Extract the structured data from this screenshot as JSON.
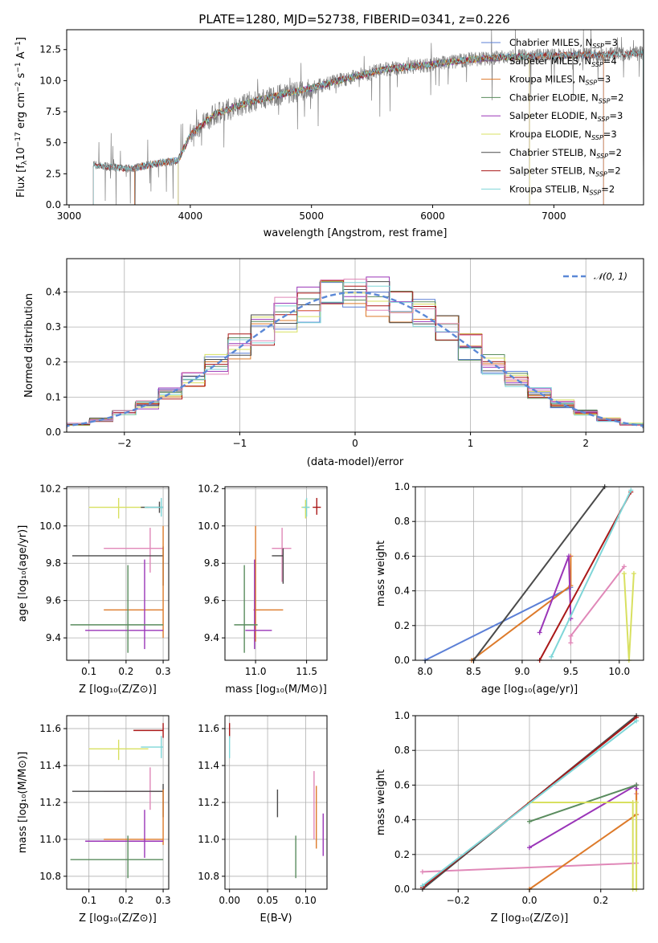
{
  "colors": {
    "Chabrier MILES": "#5b7fd6",
    "Salpeter MILES": "#7a5a80",
    "Kroupa MILES": "#dd7a2a",
    "Chabrier ELODIE": "#5a8c5e",
    "Salpeter ELODIE": "#9a35b8",
    "Kroupa ELODIE": "#d8e060",
    "Chabrier STELIB": "#4a4a4a",
    "Salpeter STELIB": "#aa1818",
    "Kroupa STELIB": "#7fd6d8",
    "pink": "#e088b8",
    "spectrum": "#7f7f7f"
  },
  "chart_data": [
    {
      "id": "spectrum",
      "type": "line",
      "title": "PLATE=1280, MJD=52738, FIBERID=0341, z=0.226",
      "xlabel": "wavelength [Angstrom, rest frame]",
      "ylabel": "Flux [fλ10⁻¹⁷ erg cm⁻² s⁻¹ A⁻¹]",
      "xlim": [
        2980,
        7740
      ],
      "ylim": [
        0,
        14.1
      ],
      "xticks": [
        "3000",
        "4000",
        "5000",
        "6000",
        "7000"
      ],
      "yticks": [
        "0.0",
        "2.5",
        "5.0",
        "7.5",
        "10.0",
        "12.5"
      ],
      "legend_position": "top-right",
      "legend": [
        {
          "name": "Chabrier MILES",
          "label": "Chabrier MILES, N",
          "sub": "SSP",
          "tail": "=3"
        },
        {
          "name": "Salpeter MILES",
          "label": "Salpeter MILES, N",
          "sub": "SSP",
          "tail": "=4"
        },
        {
          "name": "Kroupa MILES",
          "label": "Kroupa MILES, N",
          "sub": "SSP",
          "tail": "=3"
        },
        {
          "name": "Chabrier ELODIE",
          "label": "Chabrier ELODIE, N",
          "sub": "SSP",
          "tail": "=2"
        },
        {
          "name": "Salpeter ELODIE",
          "label": "Salpeter ELODIE, N",
          "sub": "SSP",
          "tail": "=3"
        },
        {
          "name": "Kroupa ELODIE",
          "label": "Kroupa ELODIE, N",
          "sub": "SSP",
          "tail": "=3"
        },
        {
          "name": "Chabrier STELIB",
          "label": "Chabrier STELIB, N",
          "sub": "SSP",
          "tail": "=2"
        },
        {
          "name": "Salpeter STELIB",
          "label": "Salpeter STELIB, N",
          "sub": "SSP",
          "tail": "=2"
        },
        {
          "name": "Kroupa STELIB",
          "label": "Kroupa STELIB, N",
          "sub": "SSP",
          "tail": "=2"
        }
      ],
      "continuum": {
        "x": [
          3200,
          3300,
          3500,
          3700,
          3900,
          4000,
          4200,
          4500,
          4800,
          5000,
          5300,
          5600,
          6000,
          6300,
          6600,
          7000,
          7400,
          7740
        ],
        "y": [
          3.2,
          3.1,
          2.9,
          3.3,
          3.6,
          5.6,
          7.3,
          8.3,
          9.0,
          9.4,
          10.2,
          10.9,
          11.3,
          11.7,
          11.9,
          12.0,
          12.1,
          12.2
        ]
      }
    },
    {
      "id": "residuals",
      "type": "histogram",
      "xlabel": "(data-model)/error",
      "ylabel": "Normed distribution",
      "xlim": [
        -2.5,
        2.5
      ],
      "ylim": [
        0,
        0.495
      ],
      "xticks": [
        "−2",
        "−1",
        "0",
        "1",
        "2"
      ],
      "yticks": [
        "0.0",
        "0.1",
        "0.2",
        "0.3",
        "0.4"
      ],
      "bin_width": 0.2,
      "legend_position": "top-right",
      "legend": [
        {
          "name": "N(0,1)",
          "label": "𝒩(0, 1)"
        }
      ],
      "gaussian": {
        "mean": 0,
        "sigma": 1
      }
    },
    {
      "id": "age_vs_Z",
      "type": "errorbar",
      "xlabel": "Z [log₁₀(Z/Z⊙)]",
      "ylabel": "age  [log₁₀(age/yr)]",
      "xlim": [
        0.04,
        0.315
      ],
      "ylim": [
        9.28,
        10.21
      ],
      "xticks": [
        {
          "v": 0.1,
          "t": "0.1"
        },
        {
          "v": 0.2,
          "t": "0.2"
        },
        {
          "v": 0.3,
          "t": "0.3"
        }
      ],
      "yticks": [
        {
          "v": 9.4,
          "t": "9.4"
        },
        {
          "v": 9.6,
          "t": "9.6"
        },
        {
          "v": 9.8,
          "t": "9.8"
        },
        {
          "v": 10.0,
          "t": "10.0"
        },
        {
          "v": 10.2,
          "t": "10.2"
        }
      ],
      "points": [
        {
          "c": "Kroupa ELODIE",
          "x": 0.18,
          "xl": 0.1,
          "xh": 0.26,
          "y": 10.1,
          "yl": 10.04,
          "yh": 10.15
        },
        {
          "c": "Chabrier STELIB",
          "x": 0.29,
          "xl": 0.24,
          "xh": 0.3,
          "y": 10.1,
          "yl": 10.07,
          "yh": 10.13
        },
        {
          "c": "Kroupa STELIB",
          "x": 0.295,
          "xl": 0.25,
          "xh": 0.3,
          "y": 10.1,
          "yl": 10.05,
          "yh": 10.15
        },
        {
          "c": "pink",
          "x": 0.265,
          "xl": 0.14,
          "xh": 0.3,
          "y": 9.88,
          "yl": 9.75,
          "yh": 9.99
        },
        {
          "c": "Chabrier STELIB",
          "x": 0.3,
          "xl": 0.055,
          "xh": 0.3,
          "y": 9.84,
          "yl": 9.68,
          "yh": 9.89
        },
        {
          "c": "Kroupa MILES",
          "x": 0.3,
          "xl": 0.14,
          "xh": 0.3,
          "y": 9.55,
          "yl": 9.4,
          "yh": 10.0
        },
        {
          "c": "Salpeter ELODIE",
          "x": 0.25,
          "xl": 0.09,
          "xh": 0.3,
          "y": 9.44,
          "yl": 9.34,
          "yh": 9.82
        },
        {
          "c": "Chabrier ELODIE",
          "x": 0.205,
          "xl": 0.05,
          "xh": 0.3,
          "y": 9.47,
          "yl": 9.32,
          "yh": 9.79
        }
      ]
    },
    {
      "id": "age_vs_mass",
      "type": "errorbar",
      "xlabel": "mass [log₁₀(M/M⊙)]",
      "ylabel": "",
      "xlim": [
        10.7,
        11.7
      ],
      "ylim": [
        9.28,
        10.21
      ],
      "xticks": [
        {
          "v": 11.0,
          "t": "11.0"
        },
        {
          "v": 11.5,
          "t": "11.5"
        }
      ],
      "yticks": [
        {
          "v": 9.4,
          "t": "9.4"
        },
        {
          "v": 9.6,
          "t": "9.6"
        },
        {
          "v": 9.8,
          "t": "9.8"
        },
        {
          "v": 10.0,
          "t": "10.0"
        },
        {
          "v": 10.2,
          "t": "10.2"
        }
      ],
      "points": [
        {
          "c": "Salpeter STELIB",
          "x": 11.6,
          "xl": 11.56,
          "xh": 11.64,
          "y": 10.1,
          "yl": 10.06,
          "yh": 10.15
        },
        {
          "c": "Kroupa ELODIE",
          "x": 11.49,
          "xl": 11.45,
          "xh": 11.53,
          "y": 10.1,
          "yl": 10.04,
          "yh": 10.14
        },
        {
          "c": "Kroupa STELIB",
          "x": 11.5,
          "xl": 11.46,
          "xh": 11.53,
          "y": 10.1,
          "yl": 10.05,
          "yh": 10.15
        },
        {
          "c": "pink",
          "x": 11.26,
          "xl": 11.16,
          "xh": 11.35,
          "y": 9.88,
          "yl": 9.7,
          "yh": 9.99
        },
        {
          "c": "Chabrier STELIB",
          "x": 11.27,
          "xl": 11.16,
          "xh": 11.27,
          "y": 9.84,
          "yl": 9.69,
          "yh": 9.88
        },
        {
          "c": "Kroupa MILES",
          "x": 11.0,
          "xl": 10.98,
          "xh": 11.27,
          "y": 9.55,
          "yl": 9.38,
          "yh": 10.0
        },
        {
          "c": "Salpeter ELODIE",
          "x": 10.99,
          "xl": 10.9,
          "xh": 11.16,
          "y": 9.44,
          "yl": 9.34,
          "yh": 9.82
        },
        {
          "c": "Chabrier ELODIE",
          "x": 10.89,
          "xl": 10.79,
          "xh": 11.02,
          "y": 9.47,
          "yl": 9.32,
          "yh": 9.79
        }
      ]
    },
    {
      "id": "weight_vs_age",
      "type": "line",
      "xlabel": "age  [log₁₀(age/yr)]",
      "ylabel": "mass weight",
      "xlim": [
        7.9,
        10.25
      ],
      "ylim": [
        0,
        1.0
      ],
      "xticks": [
        {
          "v": 8.0,
          "t": "8.0"
        },
        {
          "v": 8.5,
          "t": "8.5"
        },
        {
          "v": 9.0,
          "t": "9.0"
        },
        {
          "v": 9.5,
          "t": "9.5"
        },
        {
          "v": 10.0,
          "t": "10.0"
        }
      ],
      "yticks": [
        {
          "v": 0,
          "t": "0.0"
        },
        {
          "v": 0.2,
          "t": "0.2"
        },
        {
          "v": 0.4,
          "t": "0.4"
        },
        {
          "v": 0.6,
          "t": "0.6"
        },
        {
          "v": 0.8,
          "t": "0.8"
        },
        {
          "v": 1.0,
          "t": "1.0"
        }
      ],
      "series": [
        {
          "c": "Chabrier MILES",
          "x": [
            8.0,
            9.5
          ],
          "y": [
            0.0,
            0.42
          ]
        },
        {
          "c": "Kroupa MILES",
          "x": [
            8.48,
            9.5,
            9.5
          ],
          "y": [
            0.0,
            0.43,
            0.6
          ]
        },
        {
          "c": "Salpeter ELODIE",
          "x": [
            9.18,
            9.48,
            9.5
          ],
          "y": [
            0.16,
            0.6,
            0.24
          ]
        },
        {
          "c": "Chabrier STELIB",
          "x": [
            8.5,
            9.85
          ],
          "y": [
            0.0,
            1.0
          ]
        },
        {
          "c": "Salpeter STELIB",
          "x": [
            9.18,
            10.12
          ],
          "y": [
            0.0,
            0.97
          ]
        },
        {
          "c": "Kroupa STELIB",
          "x": [
            9.3,
            10.12
          ],
          "y": [
            0.02,
            0.98
          ]
        },
        {
          "c": "pink",
          "x": [
            9.5,
            9.5,
            10.05
          ],
          "y": [
            0.1,
            0.14,
            0.54
          ]
        },
        {
          "c": "Kroupa ELODIE",
          "x": [
            10.05,
            10.1,
            10.15
          ],
          "y": [
            0.5,
            0.0,
            0.5
          ]
        }
      ]
    },
    {
      "id": "mass_vs_Z",
      "type": "errorbar",
      "xlabel": "Z [log₁₀(Z/Z⊙)]",
      "ylabel": "mass [log₁₀(M/M⊙)]",
      "xlim": [
        0.04,
        0.315
      ],
      "ylim": [
        10.73,
        11.67
      ],
      "xticks": [
        {
          "v": 0.1,
          "t": "0.1"
        },
        {
          "v": 0.2,
          "t": "0.2"
        },
        {
          "v": 0.3,
          "t": "0.3"
        }
      ],
      "yticks": [
        {
          "v": 10.8,
          "t": "10.8"
        },
        {
          "v": 11.0,
          "t": "11.0"
        },
        {
          "v": 11.2,
          "t": "11.2"
        },
        {
          "v": 11.4,
          "t": "11.4"
        },
        {
          "v": 11.6,
          "t": "11.6"
        }
      ],
      "points": [
        {
          "c": "Salpeter STELIB",
          "x": 0.3,
          "xl": 0.22,
          "xh": 0.3,
          "y": 11.59,
          "yl": 11.55,
          "yh": 11.63
        },
        {
          "c": "Kroupa STELIB",
          "x": 0.295,
          "xl": 0.24,
          "xh": 0.3,
          "y": 11.5,
          "yl": 11.44,
          "yh": 11.56
        },
        {
          "c": "Kroupa ELODIE",
          "x": 0.18,
          "xl": 0.1,
          "xh": 0.26,
          "y": 11.49,
          "yl": 11.43,
          "yh": 11.54
        },
        {
          "c": "pink",
          "x": 0.265,
          "xl": 0.14,
          "xh": 0.3,
          "y": 11.26,
          "yl": 11.16,
          "yh": 11.39
        },
        {
          "c": "Chabrier STELIB",
          "x": 0.3,
          "xl": 0.055,
          "xh": 0.3,
          "y": 11.26,
          "yl": 11.12,
          "yh": 11.3
        },
        {
          "c": "Kroupa MILES",
          "x": 0.3,
          "xl": 0.14,
          "xh": 0.3,
          "y": 11.0,
          "yl": 10.97,
          "yh": 11.27
        },
        {
          "c": "Salpeter ELODIE",
          "x": 0.25,
          "xl": 0.09,
          "xh": 0.3,
          "y": 10.99,
          "yl": 10.9,
          "yh": 11.16
        },
        {
          "c": "Chabrier ELODIE",
          "x": 0.205,
          "xl": 0.05,
          "xh": 0.3,
          "y": 10.89,
          "yl": 10.79,
          "yh": 11.02
        }
      ]
    },
    {
      "id": "mass_vs_ebv",
      "type": "errorbar",
      "xlabel": "E(B-V)",
      "ylabel": "",
      "xlim": [
        -0.006,
        0.128
      ],
      "ylim": [
        10.73,
        11.67
      ],
      "xticks": [
        {
          "v": 0.0,
          "t": "0.00"
        },
        {
          "v": 0.05,
          "t": "0.05"
        },
        {
          "v": 0.1,
          "t": "0.10"
        }
      ],
      "yticks": [
        {
          "v": 10.8,
          "t": "10.8"
        },
        {
          "v": 11.0,
          "t": "11.0"
        },
        {
          "v": 11.2,
          "t": "11.2"
        },
        {
          "v": 11.4,
          "t": "11.4"
        },
        {
          "v": 11.6,
          "t": "11.6"
        }
      ],
      "points": [
        {
          "c": "Salpeter STELIB",
          "x": 0.0,
          "xl": 0.0,
          "xh": 0.0,
          "y": 11.59,
          "yl": 11.55,
          "yh": 11.63
        },
        {
          "c": "Kroupa STELIB",
          "x": 0.0,
          "xl": 0.0,
          "xh": 0.0,
          "y": 11.5,
          "yl": 11.44,
          "yh": 11.56
        },
        {
          "c": "Chabrier STELIB",
          "x": 0.063,
          "xl": 0.063,
          "xh": 0.063,
          "y": 11.2,
          "yl": 11.12,
          "yh": 11.27
        },
        {
          "c": "Chabrier ELODIE",
          "x": 0.087,
          "xl": 0.087,
          "xh": 0.087,
          "y": 10.89,
          "yl": 10.79,
          "yh": 11.02
        },
        {
          "c": "pink",
          "x": 0.111,
          "xl": 0.111,
          "xh": 0.111,
          "y": 11.2,
          "yl": 11.0,
          "yh": 11.37
        },
        {
          "c": "Kroupa MILES",
          "x": 0.114,
          "xl": 0.114,
          "xh": 0.114,
          "y": 11.1,
          "yl": 10.95,
          "yh": 11.29
        },
        {
          "c": "Salpeter ELODIE",
          "x": 0.123,
          "xl": 0.123,
          "xh": 0.123,
          "y": 11.0,
          "yl": 10.91,
          "yh": 11.14
        }
      ]
    },
    {
      "id": "weight_vs_Z",
      "type": "line",
      "xlabel": "Z [log₁₀(Z/Z⊙)]",
      "ylabel": "mass weight",
      "xlim": [
        -0.32,
        0.32
      ],
      "ylim": [
        0,
        1.0
      ],
      "xticks": [
        {
          "v": -0.2,
          "t": "−0.2"
        },
        {
          "v": 0.0,
          "t": "0.0"
        },
        {
          "v": 0.2,
          "t": "0.2"
        }
      ],
      "yticks": [
        {
          "v": 0,
          "t": "0.0"
        },
        {
          "v": 0.2,
          "t": "0.2"
        },
        {
          "v": 0.4,
          "t": "0.4"
        },
        {
          "v": 0.6,
          "t": "0.6"
        },
        {
          "v": 0.8,
          "t": "0.8"
        },
        {
          "v": 1.0,
          "t": "1.0"
        }
      ],
      "series": [
        {
          "c": "pink",
          "x": [
            -0.3,
            0.3,
            0.3
          ],
          "y": [
            0.1,
            0.15,
            0.55
          ]
        },
        {
          "c": "Kroupa MILES",
          "x": [
            0.0,
            0.3,
            0.3
          ],
          "y": [
            0.0,
            0.43,
            0.6
          ]
        },
        {
          "c": "Salpeter ELODIE",
          "x": [
            0.0,
            0.3,
            0.3
          ],
          "y": [
            0.24,
            0.6,
            0.58
          ]
        },
        {
          "c": "Chabrier ELODIE",
          "x": [
            0.0,
            0.3
          ],
          "y": [
            0.39,
            0.6
          ]
        },
        {
          "c": "Kroupa ELODIE",
          "x": [
            0.0,
            0.29,
            0.29,
            0.3,
            0.3
          ],
          "y": [
            0.5,
            0.5,
            0.0,
            0.0,
            0.5
          ]
        },
        {
          "c": "Chabrier STELIB",
          "x": [
            -0.3,
            0.3
          ],
          "y": [
            0.0,
            1.0
          ]
        },
        {
          "c": "Salpeter STELIB",
          "x": [
            -0.3,
            0.3
          ],
          "y": [
            0.01,
            0.99
          ]
        },
        {
          "c": "Kroupa STELIB",
          "x": [
            -0.3,
            0.3
          ],
          "y": [
            0.02,
            0.97
          ]
        }
      ]
    }
  ]
}
